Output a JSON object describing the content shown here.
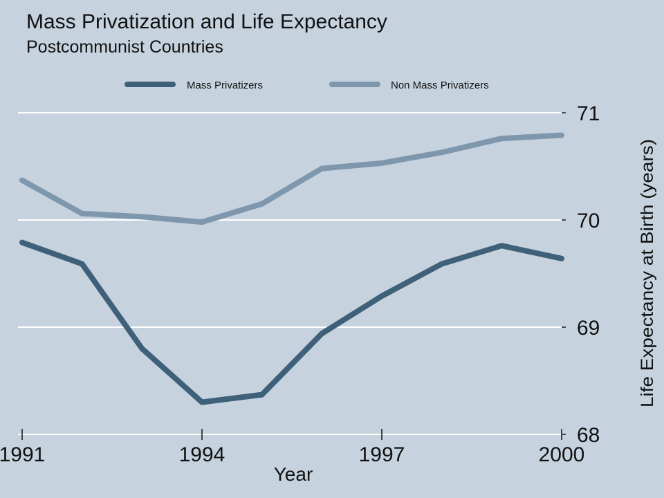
{
  "chart_data": {
    "type": "line",
    "title": "Mass Privatization and Life Expectancy",
    "subtitle": "Postcommunist Countries",
    "xlabel": "Year",
    "ylabel": "Life Expectancy at Birth (years)",
    "x": [
      1991,
      1992,
      1993,
      1994,
      1995,
      1996,
      1997,
      1998,
      1999,
      2000
    ],
    "xlim": [
      1991,
      2000
    ],
    "ylim": [
      68,
      71
    ],
    "xticks": [
      1991,
      1994,
      1997,
      2000
    ],
    "yticks": [
      68,
      69,
      70,
      71
    ],
    "grid": true,
    "legend_position": "top",
    "series": [
      {
        "name": "Mass Privatizers",
        "color": "#3f6079",
        "values": [
          69.79,
          69.59,
          68.8,
          68.3,
          68.37,
          68.94,
          69.29,
          69.59,
          69.76,
          69.64
        ]
      },
      {
        "name": "Non Mass Privatizers",
        "color": "#7f97ad",
        "values": [
          70.37,
          70.06,
          70.03,
          69.98,
          70.15,
          70.48,
          70.53,
          70.63,
          70.76,
          70.79
        ]
      }
    ]
  }
}
